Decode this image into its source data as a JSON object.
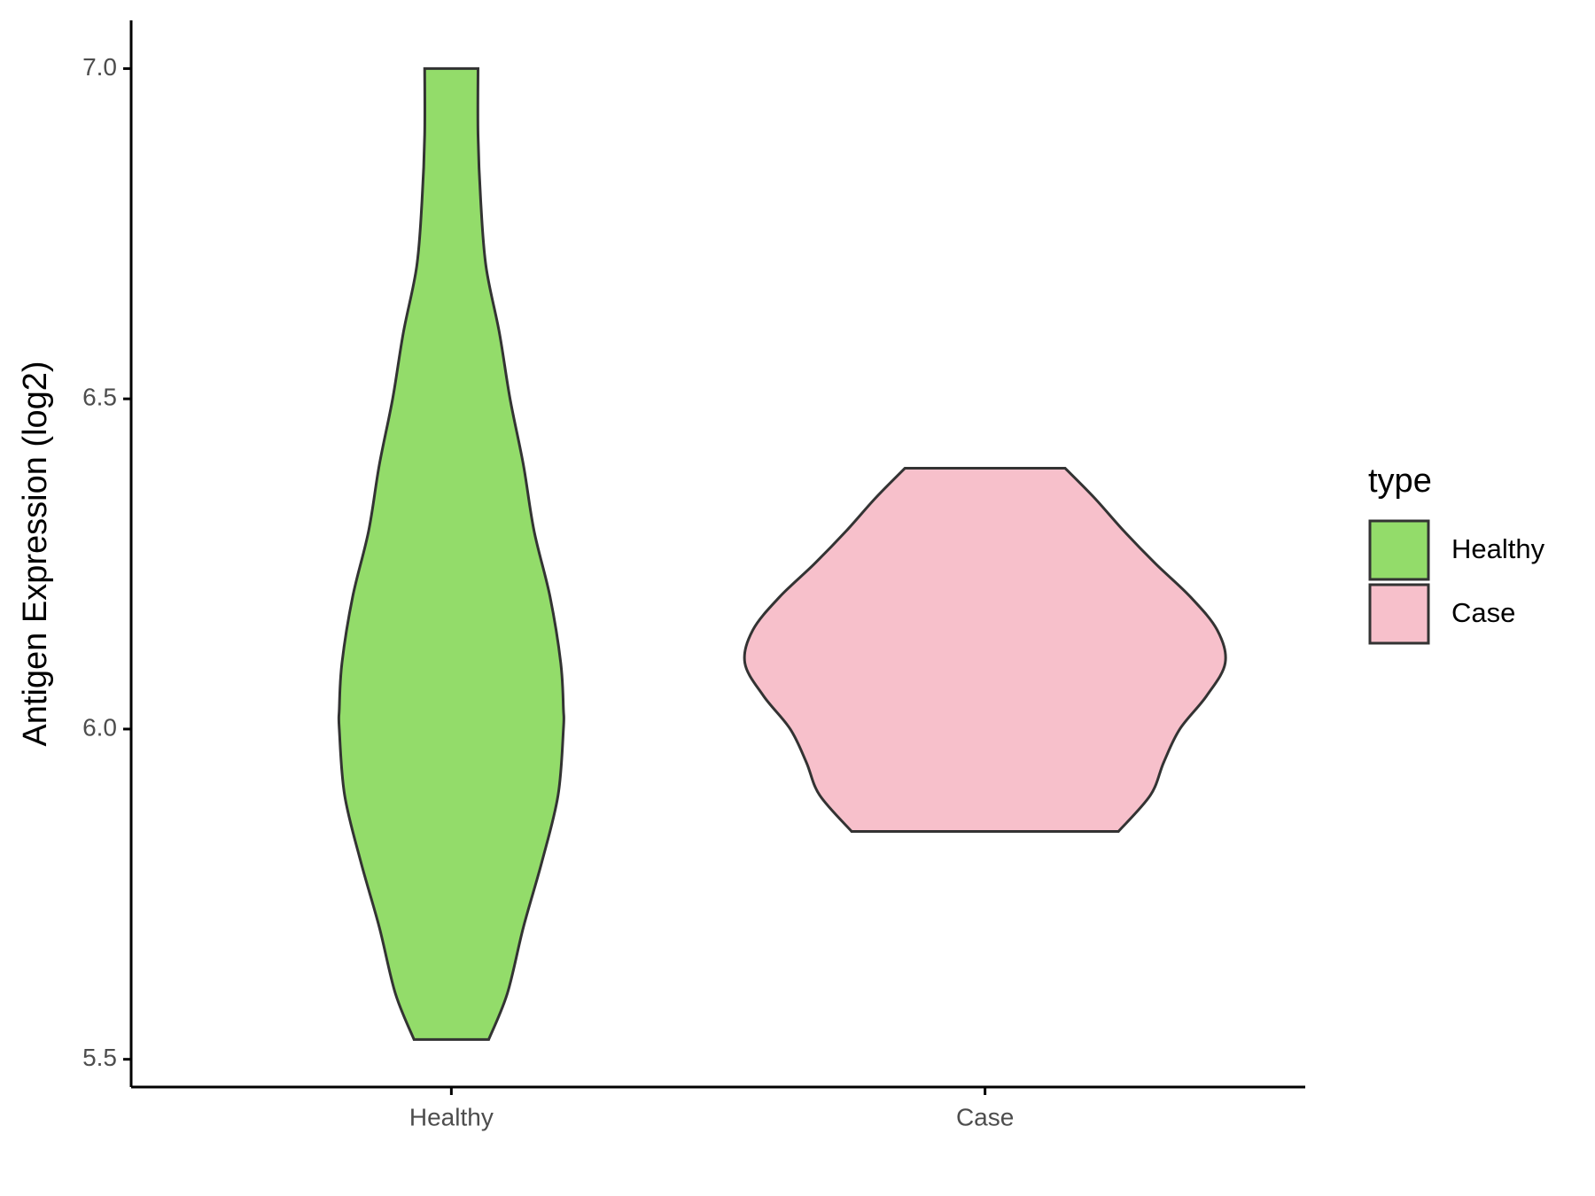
{
  "chart_data": {
    "type": "violin",
    "y_label": "Antigen Expression (log2)",
    "categories": [
      "Healthy",
      "Case"
    ],
    "ylim": [
      5.458,
      7.073
    ],
    "yticks": [
      {
        "value": 5.5,
        "label": "5.5"
      },
      {
        "value": 6.0,
        "label": "6.0"
      },
      {
        "value": 6.5,
        "label": "6.5"
      },
      {
        "value": 7.0,
        "label": "7.0"
      }
    ],
    "legend_title": "type",
    "legend_position": "right",
    "grid": false,
    "series": [
      {
        "name": "Healthy",
        "color": "#93dc6a",
        "y": [
          5.53,
          5.6,
          5.7,
          5.8,
          5.9,
          6.0,
          6.03,
          6.1,
          6.2,
          6.3,
          6.4,
          6.5,
          6.6,
          6.7,
          6.8,
          6.9,
          7.0
        ],
        "width": [
          0.14,
          0.21,
          0.27,
          0.34,
          0.4,
          0.42,
          0.42,
          0.41,
          0.37,
          0.31,
          0.27,
          0.22,
          0.18,
          0.13,
          0.11,
          0.1,
          0.1
        ]
      },
      {
        "name": "Case",
        "color": "#f7c0cb",
        "y": [
          5.845,
          5.9,
          5.95,
          6.0,
          6.05,
          6.1,
          6.15,
          6.2,
          6.25,
          6.3,
          6.35,
          6.395
        ],
        "width": [
          0.5,
          0.62,
          0.67,
          0.73,
          0.83,
          0.9,
          0.87,
          0.77,
          0.64,
          0.52,
          0.41,
          0.3
        ]
      }
    ]
  }
}
